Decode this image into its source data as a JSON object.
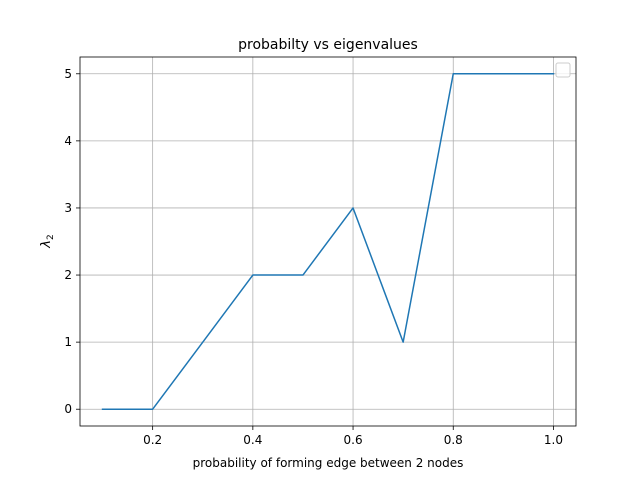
{
  "chart_data": {
    "type": "line",
    "title": "probabilty vs eigenvalues",
    "xlabel": "probability of forming edge between 2 nodes",
    "ylabel": "λ",
    "ylabel_subscript": "2",
    "xlim": [
      0.055,
      1.045
    ],
    "ylim": [
      -0.25,
      5.25
    ],
    "xticks": [
      "0.2",
      "0.4",
      "0.6",
      "0.8",
      "1.0"
    ],
    "yticks": [
      "0",
      "1",
      "2",
      "3",
      "4",
      "5"
    ],
    "grid": true,
    "legend": "top-right",
    "series": [
      {
        "color": "#1f77b4",
        "x": [
          0.1,
          0.2,
          0.3,
          0.4,
          0.5,
          0.6,
          0.7,
          0.8,
          0.9,
          1.0
        ],
        "y": [
          0,
          0,
          1,
          2,
          2,
          3,
          1,
          5,
          5,
          5
        ]
      }
    ]
  }
}
